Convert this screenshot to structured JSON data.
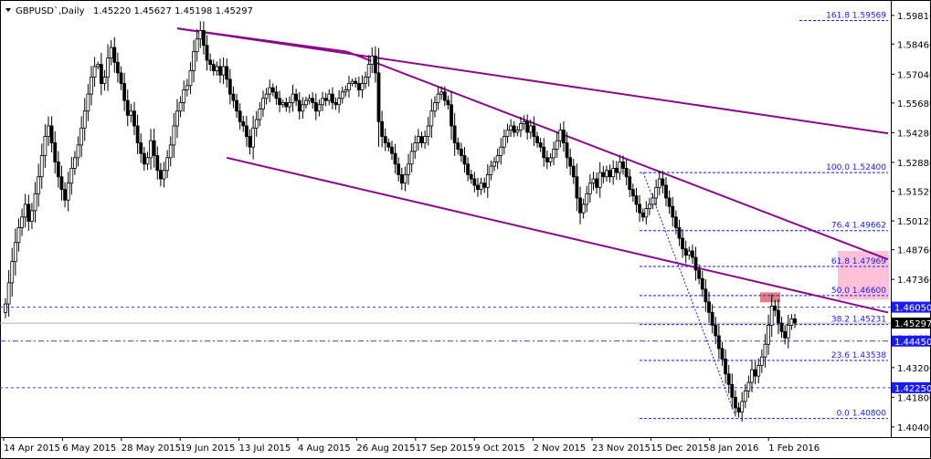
{
  "header": {
    "symbol": "GBPUSD`,Daily",
    "ohlc": "1.45220 1.45627 1.45198 1.45297"
  },
  "colors": {
    "trend": "#8b0a8b",
    "fib": "#1a1aff",
    "candle": "#000000",
    "pink_zone": "#ffc0d8",
    "red_zone": "#e87d7d",
    "price_tag_bg": "#000000",
    "level_tag_bg": "#1a1aff"
  },
  "chart_data": {
    "type": "candlestick",
    "title": "",
    "ylim": [
      1.4005,
      1.5985
    ],
    "y_ticks": [
      "1.59810",
      "1.58460",
      "1.57040",
      "1.55680",
      "1.54280",
      "1.52880",
      "1.51520",
      "1.50120",
      "1.48760",
      "1.47360",
      "1.45960",
      "1.44600",
      "1.43200",
      "1.41800",
      "1.40400"
    ],
    "x_ticks": [
      "14 Apr 2015",
      "6 May 2015",
      "28 May 2015",
      "19 Jun 2015",
      "13 Jul 2015",
      "4 Aug 2015",
      "26 Aug 2015",
      "17 Sep 2015",
      "9 Oct 2015",
      "2 Nov 2015",
      "23 Nov 2015",
      "15 Dec 2015",
      "8 Jan 2016",
      "1 Feb 2016"
    ],
    "last_price": "1.45297",
    "fibonacci": [
      {
        "label": "161.8 1.59569",
        "value": 1.59569
      },
      {
        "label": "100.0 1.52400",
        "value": 1.524
      },
      {
        "label": "76.4 1.49662",
        "value": 1.49662
      },
      {
        "label": "61.8 1.47969",
        "value": 1.47969
      },
      {
        "label": "50.0 1.46600",
        "value": 1.466
      },
      {
        "label": "38.2 1.45231",
        "value": 1.45231
      },
      {
        "label": "23.6 1.43538",
        "value": 1.43538
      },
      {
        "label": "0.0 1.40800",
        "value": 1.408
      }
    ],
    "levels": [
      {
        "label": "1.46050",
        "value": 1.4605,
        "style": "dashed"
      },
      {
        "label": "1.44450",
        "value": 1.4445,
        "style": "dashdot"
      },
      {
        "label": "1.42250",
        "value": 1.4225,
        "style": "dashed"
      }
    ],
    "trend_lines": [
      {
        "from": [
          0,
          1.592
        ],
        "to": [
          370,
          1.5725
        ]
      },
      {
        "from": [
          0,
          1.592
        ],
        "to": [
          370,
          1.458
        ]
      },
      {
        "from": [
          0,
          1.5325
        ],
        "to": [
          370,
          1.459
        ]
      },
      {
        "from": [
          0,
          1.5815
        ],
        "to": [
          370,
          1.48
        ]
      }
    ],
    "candles_close": [
      1.462,
      1.472,
      1.482,
      1.491,
      1.498,
      1.503,
      1.509,
      1.501,
      1.506,
      1.514,
      1.522,
      1.532,
      1.541,
      1.546,
      1.538,
      1.529,
      1.522,
      1.516,
      1.511,
      1.519,
      1.526,
      1.531,
      1.537,
      1.545,
      1.553,
      1.561,
      1.569,
      1.574,
      1.575,
      1.566,
      1.569,
      1.578,
      1.583,
      1.576,
      1.571,
      1.566,
      1.558,
      1.551,
      1.553,
      1.546,
      1.538,
      1.533,
      1.528,
      1.531,
      1.539,
      1.532,
      1.525,
      1.521,
      1.525,
      1.531,
      1.537,
      1.546,
      1.553,
      1.557,
      1.563,
      1.565,
      1.572,
      1.581,
      1.587,
      1.591,
      1.584,
      1.577,
      1.575,
      1.572,
      1.574,
      1.57,
      1.574,
      1.568,
      1.561,
      1.558,
      1.553,
      1.548,
      1.546,
      1.541,
      1.536,
      1.545,
      1.549,
      1.554,
      1.559,
      1.561,
      1.564,
      1.562,
      1.559,
      1.556,
      1.557,
      1.555,
      1.557,
      1.561,
      1.558,
      1.553,
      1.556,
      1.558,
      1.559,
      1.557,
      1.553,
      1.556,
      1.559,
      1.558,
      1.561,
      1.557,
      1.556,
      1.559,
      1.562,
      1.563,
      1.566,
      1.567,
      1.566,
      1.563,
      1.566,
      1.569,
      1.575,
      1.579,
      1.571,
      1.548,
      1.541,
      1.538,
      1.536,
      1.533,
      1.528,
      1.523,
      1.519,
      1.523,
      1.528,
      1.534,
      1.538,
      1.541,
      1.538,
      1.541,
      1.546,
      1.553,
      1.557,
      1.561,
      1.562,
      1.558,
      1.556,
      1.546,
      1.538,
      1.535,
      1.532,
      1.528,
      1.523,
      1.521,
      1.518,
      1.516,
      1.519,
      1.517,
      1.523,
      1.527,
      1.529,
      1.532,
      1.536,
      1.541,
      1.544,
      1.546,
      1.543,
      1.544,
      1.547,
      1.548,
      1.543,
      1.546,
      1.541,
      1.538,
      1.536,
      1.531,
      1.529,
      1.531,
      1.535,
      1.539,
      1.544,
      1.538,
      1.531,
      1.527,
      1.522,
      1.512,
      1.505,
      1.509,
      1.514,
      1.519,
      1.521,
      1.517,
      1.524,
      1.522,
      1.525,
      1.522,
      1.526,
      1.524,
      1.529,
      1.526,
      1.522,
      1.516,
      1.513,
      1.509,
      1.505,
      1.503,
      1.507,
      1.509,
      1.512,
      1.517,
      1.521,
      1.518,
      1.512,
      1.508,
      1.503,
      1.498,
      1.493,
      1.488,
      1.485,
      1.487,
      1.484,
      1.478,
      1.474,
      1.469,
      1.463,
      1.458,
      1.452,
      1.447,
      1.441,
      1.436,
      1.429,
      1.424,
      1.418,
      1.413,
      1.411,
      1.416,
      1.421,
      1.425,
      1.431,
      1.428,
      1.433,
      1.437,
      1.443,
      1.452,
      1.461,
      1.459,
      1.453,
      1.449,
      1.446,
      1.452,
      1.455,
      1.453
    ]
  }
}
